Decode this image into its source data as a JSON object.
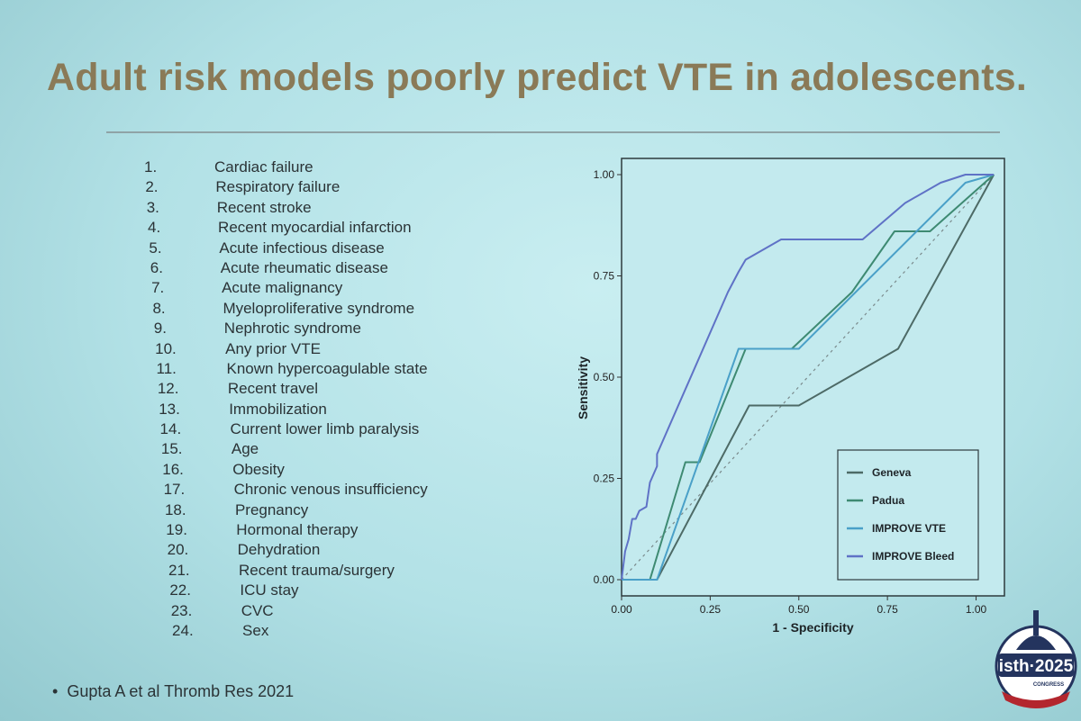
{
  "slide": {
    "title": "Adult risk models poorly predict VTE in adolescents.",
    "risk_factors": [
      {
        "num": "1.",
        "label": "Cardiac failure"
      },
      {
        "num": "2.",
        "label": "Respiratory failure"
      },
      {
        "num": "3.",
        "label": "Recent stroke"
      },
      {
        "num": "4.",
        "label": "Recent myocardial infarction"
      },
      {
        "num": "5.",
        "label": "Acute infectious disease"
      },
      {
        "num": "6.",
        "label": "Acute rheumatic disease"
      },
      {
        "num": "7.",
        "label": "Acute malignancy"
      },
      {
        "num": "8.",
        "label": "Myeloproliferative syndrome"
      },
      {
        "num": "9.",
        "label": "Nephrotic syndrome"
      },
      {
        "num": "10.",
        "label": "Any prior VTE"
      },
      {
        "num": "11.",
        "label": "Known hypercoagulable state"
      },
      {
        "num": "12.",
        "label": "Recent travel"
      },
      {
        "num": "13.",
        "label": "Immobilization"
      },
      {
        "num": "14.",
        "label": "Current lower limb paralysis"
      },
      {
        "num": "15.",
        "label": "Age"
      },
      {
        "num": "16.",
        "label": "Obesity"
      },
      {
        "num": "17.",
        "label": "Chronic venous insufficiency"
      },
      {
        "num": "18.",
        "label": "Pregnancy"
      },
      {
        "num": "19.",
        "label": "Hormonal therapy"
      },
      {
        "num": "20.",
        "label": "Dehydration"
      },
      {
        "num": "21.",
        "label": "Recent trauma/surgery"
      },
      {
        "num": "22.",
        "label": "ICU stay"
      },
      {
        "num": "23.",
        "label": "CVC"
      },
      {
        "num": "24.",
        "label": "Sex"
      }
    ],
    "citation": "Gupta A et al Thromb Res 2021",
    "logo": {
      "line1": "isth",
      "line2": "2025",
      "line3": "CONGRESS"
    }
  },
  "chart_data": {
    "type": "line",
    "xlabel": "1 - Specificity",
    "ylabel": "Sensitivity",
    "xlim": [
      0,
      1.08
    ],
    "ylim": [
      -0.04,
      1.04
    ],
    "x_ticks": [
      0,
      0.25,
      0.5,
      0.75,
      1
    ],
    "x_tick_labels": [
      "0.00",
      "0.25",
      "0.50",
      "0.75",
      "1.00"
    ],
    "y_ticks": [
      0,
      0.25,
      0.5,
      0.75,
      1
    ],
    "y_tick_labels": [
      "0.00",
      "0.25",
      "0.50",
      "0.75",
      "1.00"
    ],
    "grid": false,
    "legend_position": "bottom-right",
    "reference_line": {
      "x": [
        0,
        1.05
      ],
      "y": [
        0,
        1
      ]
    },
    "series": [
      {
        "name": "Geneva",
        "color": "#4d6a66",
        "x": [
          0,
          0.1,
          0.36,
          0.5,
          0.78,
          1.05
        ],
        "y": [
          0,
          0,
          0.43,
          0.43,
          0.57,
          1
        ]
      },
      {
        "name": "Padua",
        "color": "#3e8a72",
        "x": [
          0,
          0.08,
          0.18,
          0.22,
          0.35,
          0.48,
          0.65,
          0.77,
          0.87,
          1.05
        ],
        "y": [
          0,
          0,
          0.29,
          0.29,
          0.57,
          0.57,
          0.71,
          0.86,
          0.86,
          1
        ]
      },
      {
        "name": "IMPROVE VTE",
        "color": "#4aa0c8",
        "x": [
          0,
          0.1,
          0.33,
          0.5,
          0.97,
          1.05
        ],
        "y": [
          0,
          0,
          0.57,
          0.57,
          0.98,
          1
        ]
      },
      {
        "name": "IMPROVE Bleed",
        "color": "#5f72c6",
        "x": [
          0,
          0.01,
          0.02,
          0.03,
          0.04,
          0.05,
          0.07,
          0.08,
          0.1,
          0.1,
          0.3,
          0.33,
          0.35,
          0.45,
          0.5,
          0.68,
          0.8,
          0.9,
          0.97,
          1.05
        ],
        "y": [
          0,
          0.07,
          0.1,
          0.15,
          0.15,
          0.17,
          0.18,
          0.24,
          0.28,
          0.31,
          0.71,
          0.76,
          0.79,
          0.84,
          0.84,
          0.84,
          0.93,
          0.98,
          1,
          1
        ]
      }
    ]
  }
}
